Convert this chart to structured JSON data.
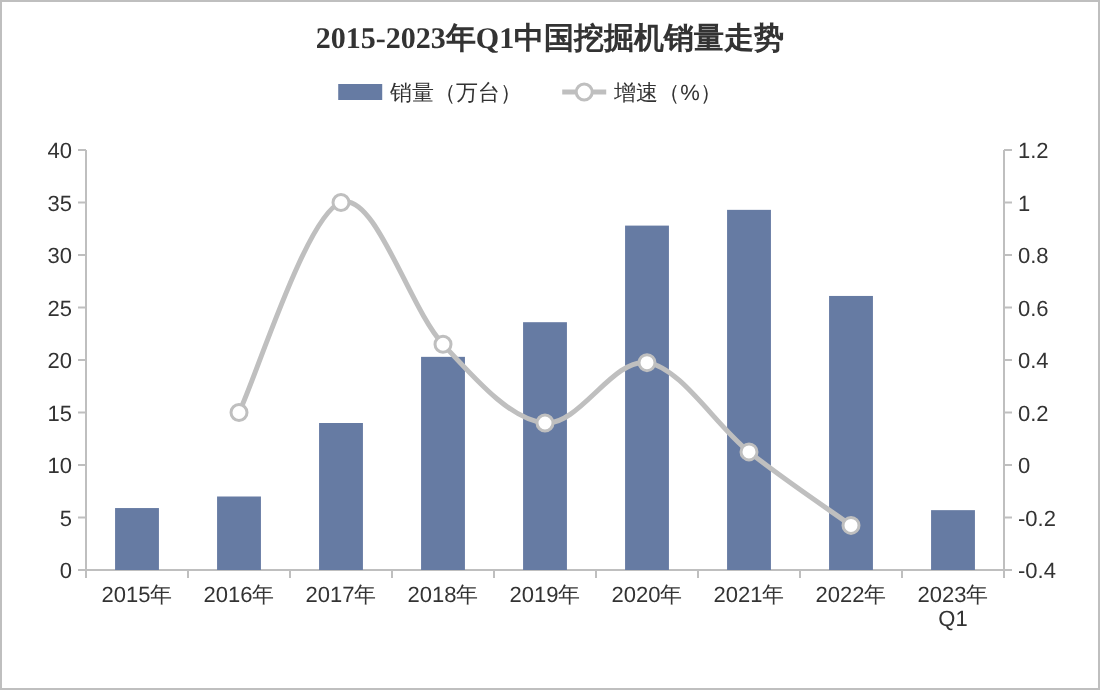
{
  "chart_data": {
    "type": "bar",
    "title": "2015-2023年Q1中国挖掘机销量走势",
    "categories": [
      "2015年",
      "2016年",
      "2017年",
      "2018年",
      "2019年",
      "2020年",
      "2021年",
      "2022年",
      "2023年Q1"
    ],
    "series": [
      {
        "name": "销量（万台）",
        "color": "#667ba3",
        "values": [
          5.9,
          7.0,
          14.0,
          20.3,
          23.6,
          32.8,
          34.3,
          26.1,
          5.7
        ]
      },
      {
        "name": "增速（%）",
        "type": "line",
        "axis": "y2",
        "color": "#bfbfbf",
        "marker": "circle",
        "values": [
          null,
          0.2,
          1.0,
          0.46,
          0.16,
          0.39,
          0.05,
          -0.23,
          null
        ]
      }
    ],
    "ylim": [
      0,
      40
    ],
    "yticks": [
      0,
      5,
      10,
      15,
      20,
      25,
      30,
      35,
      40
    ],
    "y2lim": [
      -0.4,
      1.2
    ],
    "y2ticks": [
      -0.4,
      -0.2,
      0,
      0.2,
      0.4,
      0.6,
      0.8,
      1,
      1.2
    ],
    "legend": "top"
  }
}
